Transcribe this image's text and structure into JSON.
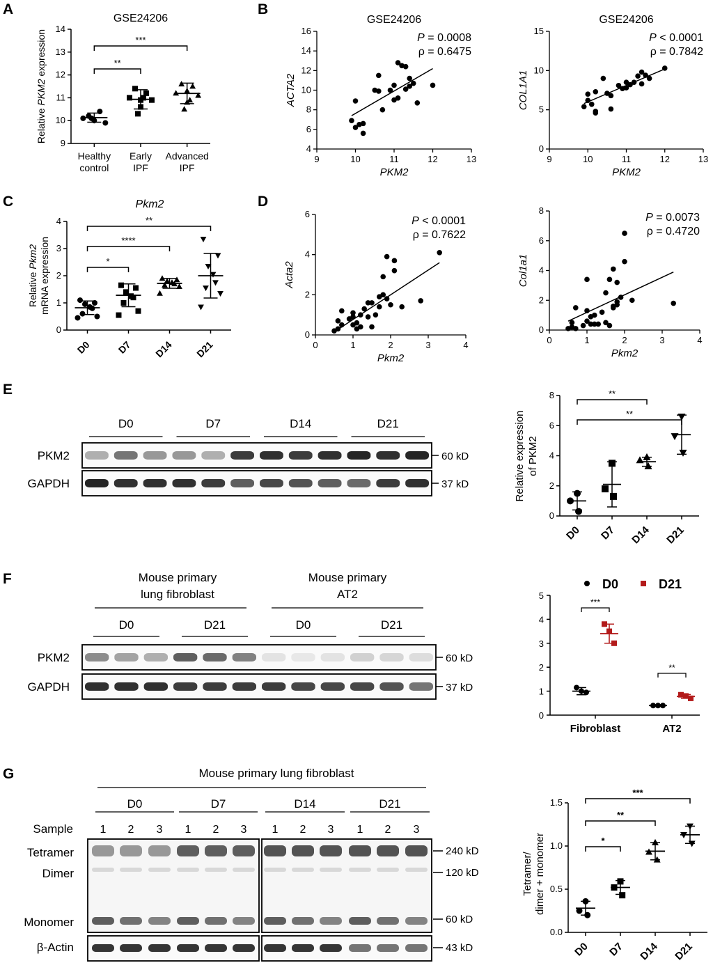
{
  "figure": {
    "panel_letters": [
      "A",
      "B",
      "C",
      "D",
      "E",
      "F",
      "G"
    ]
  },
  "chart_data": [
    {
      "id": "A",
      "type": "scatter",
      "title": "GSE24206",
      "ylabel_parts": [
        "Relative ",
        "PKM2",
        " expression"
      ],
      "categories": [
        [
          "Healthy",
          "control"
        ],
        [
          "Early",
          "IPF"
        ],
        [
          "Advanced",
          "IPF"
        ]
      ],
      "yticks": [
        9,
        10,
        11,
        12,
        13,
        14
      ],
      "ylim": [
        9,
        14
      ],
      "groups": [
        {
          "marker": "circle",
          "points": [
            10.2,
            10.4,
            10.1,
            9.9,
            10.0,
            10.1
          ],
          "mean": 10.13,
          "sd": 0.2
        },
        {
          "marker": "square",
          "points": [
            11.4,
            11.2,
            11.0,
            10.9,
            10.6,
            10.3,
            11.0,
            10.9
          ],
          "mean": 10.93,
          "sd": 0.42
        },
        {
          "marker": "triangle",
          "points": [
            11.6,
            11.5,
            11.2,
            11.1,
            10.8,
            10.5,
            10.9,
            11.3
          ],
          "mean": 11.19,
          "sd": 0.45
        }
      ],
      "significance": [
        {
          "from": 0,
          "to": 1,
          "label": "**"
        },
        {
          "from": 0,
          "to": 2,
          "label": "***"
        }
      ]
    },
    {
      "id": "B1",
      "type": "scatter",
      "title": "GSE24206",
      "xlabel": "PKM2",
      "ylabel": "ACTA2",
      "xlim": [
        9,
        13
      ],
      "ylim": [
        4,
        16
      ],
      "xticks": [
        9,
        10,
        11,
        12,
        13
      ],
      "yticks": [
        4,
        6,
        8,
        10,
        12,
        14,
        16
      ],
      "stat_p": "P = 0.0008",
      "stat_rho": "ρ = 0.6475",
      "trend": [
        [
          9.9,
          7.4
        ],
        [
          12.0,
          12.2
        ]
      ],
      "points": [
        [
          10.0,
          8.9
        ],
        [
          9.9,
          6.9
        ],
        [
          10.0,
          6.2
        ],
        [
          10.1,
          6.5
        ],
        [
          10.2,
          5.6
        ],
        [
          10.2,
          6.6
        ],
        [
          10.5,
          10.0
        ],
        [
          10.6,
          9.9
        ],
        [
          10.6,
          11.5
        ],
        [
          10.7,
          8.0
        ],
        [
          10.9,
          10.0
        ],
        [
          11.0,
          9.0
        ],
        [
          11.0,
          10.5
        ],
        [
          11.1,
          12.8
        ],
        [
          11.1,
          9.2
        ],
        [
          11.2,
          12.5
        ],
        [
          11.3,
          12.4
        ],
        [
          11.3,
          10.1
        ],
        [
          11.4,
          10.4
        ],
        [
          11.4,
          11.2
        ],
        [
          11.5,
          10.7
        ],
        [
          11.6,
          8.7
        ],
        [
          12.0,
          10.5
        ]
      ]
    },
    {
      "id": "B2",
      "type": "scatter",
      "title": "GSE24206",
      "xlabel": "PKM2",
      "ylabel": "COL1A1",
      "xlim": [
        9,
        13
      ],
      "ylim": [
        0,
        15
      ],
      "xticks": [
        9,
        10,
        11,
        12,
        13
      ],
      "yticks": [
        0,
        5,
        10,
        15
      ],
      "stat_p": "P < 0.0001",
      "stat_rho": "ρ = 0.7842",
      "trend": [
        [
          9.9,
          5.8
        ],
        [
          12.0,
          10.2
        ]
      ],
      "points": [
        [
          9.9,
          5.4
        ],
        [
          10.0,
          7.0
        ],
        [
          10.0,
          6.2
        ],
        [
          10.1,
          5.7
        ],
        [
          10.2,
          4.8
        ],
        [
          10.2,
          4.6
        ],
        [
          10.2,
          7.3
        ],
        [
          10.4,
          9.0
        ],
        [
          10.5,
          7.1
        ],
        [
          10.6,
          6.8
        ],
        [
          10.6,
          5.1
        ],
        [
          10.8,
          8.1
        ],
        [
          10.9,
          7.7
        ],
        [
          11.0,
          8.5
        ],
        [
          11.0,
          7.8
        ],
        [
          11.1,
          8.2
        ],
        [
          11.2,
          8.5
        ],
        [
          11.3,
          9.3
        ],
        [
          11.4,
          9.8
        ],
        [
          11.4,
          8.3
        ],
        [
          11.5,
          9.4
        ],
        [
          11.6,
          9.0
        ],
        [
          12.0,
          10.3
        ]
      ]
    },
    {
      "id": "C",
      "type": "scatter",
      "title": "Pkm2",
      "ylabel_parts": [
        "Relative ",
        "Pkm2",
        "mRNA expression"
      ],
      "categories": [
        "D0",
        "D7",
        "D14",
        "D21"
      ],
      "yticks": [
        0,
        1,
        2,
        3,
        4
      ],
      "ylim": [
        0,
        4
      ],
      "groups": [
        {
          "marker": "circle",
          "points": [
            1.1,
            1.0,
            0.95,
            0.85,
            0.8,
            0.6,
            0.5,
            0.45
          ],
          "mean": 0.82,
          "sd": 0.25
        },
        {
          "marker": "square",
          "points": [
            1.65,
            1.55,
            1.4,
            1.25,
            1.2,
            1.0,
            0.7,
            0.55
          ],
          "mean": 1.28,
          "sd": 0.42
        },
        {
          "marker": "triangle",
          "points": [
            1.9,
            1.85,
            1.8,
            1.75,
            1.7,
            1.65,
            1.6,
            1.35
          ],
          "mean": 1.72,
          "sd": 0.18
        },
        {
          "marker": "down-triangle",
          "points": [
            3.35,
            2.75,
            2.35,
            2.05,
            1.75,
            1.55,
            1.35,
            0.85
          ],
          "mean": 2.0,
          "sd": 0.82
        }
      ],
      "significance": [
        {
          "from": 0,
          "to": 1,
          "label": "*"
        },
        {
          "from": 0,
          "to": 2,
          "label": "****"
        },
        {
          "from": 0,
          "to": 3,
          "label": "**"
        }
      ]
    },
    {
      "id": "D1",
      "type": "scatter",
      "xlabel": "Pkm2",
      "ylabel": "Acta2",
      "xlim": [
        0,
        4
      ],
      "ylim": [
        0,
        6
      ],
      "xticks": [
        0,
        1,
        2,
        3,
        4
      ],
      "yticks": [
        0,
        2,
        4,
        6
      ],
      "stat_p": "P < 0.0001",
      "stat_rho": "ρ = 0.7622",
      "trend": [
        [
          0.5,
          0.15
        ],
        [
          3.3,
          3.6
        ]
      ],
      "points": [
        [
          0.5,
          0.2
        ],
        [
          0.6,
          0.3
        ],
        [
          0.6,
          0.7
        ],
        [
          0.7,
          0.5
        ],
        [
          0.7,
          1.2
        ],
        [
          0.9,
          0.8
        ],
        [
          1.0,
          0.5
        ],
        [
          1.0,
          0.9
        ],
        [
          1.0,
          1.1
        ],
        [
          1.1,
          0.6
        ],
        [
          1.1,
          0.3
        ],
        [
          1.2,
          1.0
        ],
        [
          1.2,
          0.4
        ],
        [
          1.3,
          1.3
        ],
        [
          1.4,
          0.9
        ],
        [
          1.4,
          1.6
        ],
        [
          1.5,
          0.4
        ],
        [
          1.5,
          1.6
        ],
        [
          1.6,
          1.0
        ],
        [
          1.7,
          1.4
        ],
        [
          1.7,
          1.9
        ],
        [
          1.8,
          2.0
        ],
        [
          1.8,
          2.9
        ],
        [
          1.9,
          1.8
        ],
        [
          1.9,
          3.9
        ],
        [
          2.0,
          1.5
        ],
        [
          2.1,
          3.2
        ],
        [
          2.1,
          3.7
        ],
        [
          2.3,
          1.4
        ],
        [
          2.8,
          1.7
        ],
        [
          3.3,
          4.1
        ]
      ]
    },
    {
      "id": "D2",
      "type": "scatter",
      "xlabel": "Pkm2",
      "ylabel": "Col1a1",
      "xlim": [
        0,
        4
      ],
      "ylim": [
        0,
        8
      ],
      "xticks": [
        0,
        1,
        2,
        3,
        4
      ],
      "yticks": [
        0,
        2,
        4,
        6,
        8
      ],
      "stat_p": "P = 0.0073",
      "stat_rho": "ρ = 0.4720",
      "trend": [
        [
          0.5,
          0.6
        ],
        [
          3.3,
          3.9
        ]
      ],
      "points": [
        [
          0.5,
          0.1
        ],
        [
          0.6,
          0.2
        ],
        [
          0.6,
          0.5
        ],
        [
          0.7,
          0.1
        ],
        [
          0.7,
          1.5
        ],
        [
          0.9,
          0.3
        ],
        [
          1.0,
          0.6
        ],
        [
          1.0,
          1.3
        ],
        [
          1.0,
          3.4
        ],
        [
          1.1,
          0.9
        ],
        [
          1.1,
          0.4
        ],
        [
          1.2,
          1.0
        ],
        [
          1.2,
          0.4
        ],
        [
          1.3,
          0.4
        ],
        [
          1.4,
          1.2
        ],
        [
          1.5,
          0.5
        ],
        [
          1.5,
          2.5
        ],
        [
          1.6,
          0.3
        ],
        [
          1.6,
          3.4
        ],
        [
          1.7,
          1.5
        ],
        [
          1.7,
          1.6
        ],
        [
          1.7,
          4.1
        ],
        [
          1.8,
          1.7
        ],
        [
          1.8,
          1.9
        ],
        [
          1.8,
          3.2
        ],
        [
          1.9,
          2.2
        ],
        [
          2.0,
          4.6
        ],
        [
          2.0,
          6.5
        ],
        [
          2.2,
          2.0
        ],
        [
          3.3,
          1.8
        ]
      ]
    },
    {
      "id": "E",
      "type": "scatter",
      "ylabel_lines": [
        "Relative expression",
        "of PKM2"
      ],
      "categories": [
        "D0",
        "D7",
        "D14",
        "D21"
      ],
      "yticks": [
        0,
        2,
        4,
        6,
        8
      ],
      "ylim": [
        0,
        8
      ],
      "groups": [
        {
          "marker": "circle",
          "points": [
            1.5,
            1.0,
            0.3
          ],
          "mean": 1.0,
          "sd": 0.6
        },
        {
          "marker": "square",
          "points": [
            3.5,
            1.8,
            1.3
          ],
          "mean": 2.1,
          "sd": 1.5
        },
        {
          "marker": "triangle",
          "points": [
            3.9,
            3.7,
            3.3
          ],
          "mean": 3.6,
          "sd": 0.3
        },
        {
          "marker": "down-triangle",
          "points": [
            6.6,
            5.3,
            4.2
          ],
          "mean": 5.4,
          "sd": 1.3
        }
      ],
      "significance": [
        {
          "from": 0,
          "to": 2,
          "label": "**"
        },
        {
          "from": 0,
          "to": 3,
          "label": "**"
        }
      ]
    },
    {
      "id": "F",
      "type": "scatter",
      "categories": [
        "Fibroblast",
        "AT2"
      ],
      "yticks": [
        0,
        1,
        2,
        3,
        4,
        5
      ],
      "ylim": [
        0,
        5
      ],
      "series": [
        {
          "name": "D0",
          "color": "#000000",
          "marker": "circle",
          "groups": [
            {
              "points": [
                1.15,
                1.0,
                0.95
              ],
              "mean": 1.0,
              "sd": 0.15
            },
            {
              "points": [
                0.4,
                0.4,
                0.4
              ],
              "mean": 0.4,
              "sd": 0.02
            }
          ]
        },
        {
          "name": "D21",
          "color": "#b31b1b",
          "marker": "square",
          "groups": [
            {
              "points": [
                3.8,
                3.5,
                3.0
              ],
              "mean": 3.4,
              "sd": 0.4
            },
            {
              "points": [
                0.85,
                0.8,
                0.7
              ],
              "mean": 0.78,
              "sd": 0.08
            }
          ]
        }
      ],
      "significance": [
        {
          "group": 0,
          "label": "***"
        },
        {
          "group": 1,
          "label": "**"
        }
      ]
    },
    {
      "id": "G",
      "type": "scatter",
      "ylabel_lines": [
        "Tetramer/",
        "dimer + monomer"
      ],
      "categories": [
        "D0",
        "D7",
        "D14",
        "D21"
      ],
      "yticks": [
        0.0,
        0.5,
        1.0,
        1.5
      ],
      "ytick_labels": [
        "0.0",
        "0.5",
        "1.0",
        "1.5"
      ],
      "ylim": [
        0,
        1.5
      ],
      "groups": [
        {
          "marker": "circle",
          "points": [
            0.36,
            0.25,
            0.2
          ],
          "mean": 0.28,
          "sd": 0.08
        },
        {
          "marker": "square",
          "points": [
            0.59,
            0.52,
            0.43
          ],
          "mean": 0.52,
          "sd": 0.08
        },
        {
          "marker": "triangle",
          "points": [
            1.04,
            0.93,
            0.84
          ],
          "mean": 0.94,
          "sd": 0.1
        },
        {
          "marker": "down-triangle",
          "points": [
            1.23,
            1.13,
            1.03
          ],
          "mean": 1.13,
          "sd": 0.1
        }
      ],
      "significance": [
        {
          "from": 0,
          "to": 1,
          "label": "*"
        },
        {
          "from": 0,
          "to": 2,
          "label": "**"
        },
        {
          "from": 0,
          "to": 3,
          "label": "***"
        }
      ]
    }
  ],
  "blots": {
    "E": {
      "groups": [
        "D0",
        "D7",
        "D14",
        "D21"
      ],
      "rows": [
        {
          "label": "PKM2",
          "kd": "60 kD",
          "intensity": [
            0.35,
            0.6,
            0.45,
            0.45,
            0.35,
            0.85,
            0.9,
            0.85,
            0.9,
            0.95,
            0.9,
            0.95
          ]
        },
        {
          "label": "GAPDH",
          "kd": "37 kD",
          "intensity": [
            0.95,
            0.9,
            0.9,
            0.9,
            0.85,
            0.7,
            0.8,
            0.75,
            0.7,
            0.65,
            0.85,
            0.9
          ]
        }
      ]
    },
    "F": {
      "headers": [
        [
          "Mouse primary",
          "lung fibroblast"
        ],
        [
          "Mouse primary",
          "AT2"
        ]
      ],
      "groups": [
        "D0",
        "D21",
        "D0",
        "D21"
      ],
      "rows": [
        {
          "label": "PKM2",
          "kd": "60 kD",
          "intensity": [
            0.5,
            0.4,
            0.35,
            0.7,
            0.65,
            0.55,
            0.12,
            0.1,
            0.12,
            0.2,
            0.18,
            0.15
          ]
        },
        {
          "label": "GAPDH",
          "kd": "37 kD",
          "intensity": [
            0.9,
            0.9,
            0.9,
            0.85,
            0.85,
            0.85,
            0.85,
            0.8,
            0.8,
            0.8,
            0.75,
            0.6
          ]
        }
      ]
    },
    "G": {
      "header": "Mouse primary lung fibroblast",
      "groups": [
        "D0",
        "D7",
        "D14",
        "D21"
      ],
      "sample_label": "Sample",
      "sample_numbers": [
        "1",
        "2",
        "3",
        "1",
        "2",
        "3",
        "1",
        "2",
        "3",
        "1",
        "2",
        "3"
      ],
      "band_labels": [
        "Tetramer",
        "Dimer",
        "Monomer",
        "β-Actin"
      ],
      "kd_labels": [
        "240 kD",
        "120 kD",
        "60 kD",
        "43 kD"
      ]
    }
  }
}
